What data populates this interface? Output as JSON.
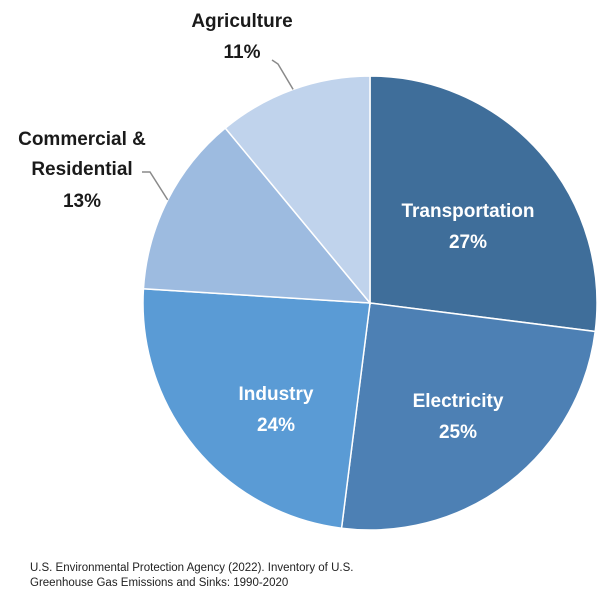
{
  "chart_data": {
    "type": "pie",
    "title": "",
    "slices": [
      {
        "label": "Transportation",
        "value": 27,
        "value_label": "27%",
        "color": "#3f6e9a"
      },
      {
        "label": "Electricity",
        "value": 25,
        "value_label": "25%",
        "color": "#4d80b4"
      },
      {
        "label": "Industry",
        "value": 24,
        "value_label": "24%",
        "color": "#5a9bd5"
      },
      {
        "label": "Commercial & Residential",
        "label_lines": [
          "Commercial &",
          "Residential"
        ],
        "value": 13,
        "value_label": "13%",
        "color": "#9dbbe0"
      },
      {
        "label": "Agriculture",
        "value": 11,
        "value_label": "11%",
        "color": "#c0d3ec"
      }
    ],
    "legend": "none"
  },
  "source": {
    "line1": "U.S. Environmental Protection Agency (2022). Inventory of U.S.",
    "line2": "Greenhouse Gas Emissions and Sinks: 1990-2020"
  }
}
